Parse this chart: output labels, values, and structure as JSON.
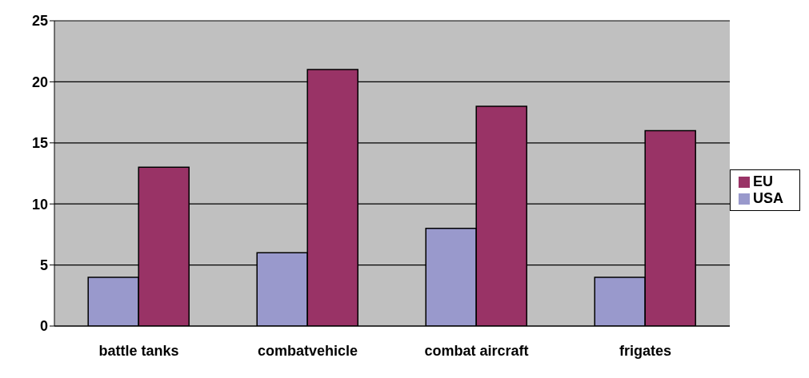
{
  "chart_data": {
    "type": "bar",
    "categories": [
      "battle tanks",
      "combatvehicle",
      "combat aircraft",
      "frigates"
    ],
    "series": [
      {
        "name": "USA",
        "color": "#9999cc",
        "values": [
          4,
          6,
          8,
          4
        ]
      },
      {
        "name": "EU",
        "color": "#993366",
        "values": [
          13,
          21,
          18,
          16
        ]
      }
    ],
    "ylim": [
      0,
      25
    ],
    "yticks": [
      0,
      5,
      10,
      15,
      20,
      25
    ],
    "grid": "y",
    "legend": "right"
  }
}
